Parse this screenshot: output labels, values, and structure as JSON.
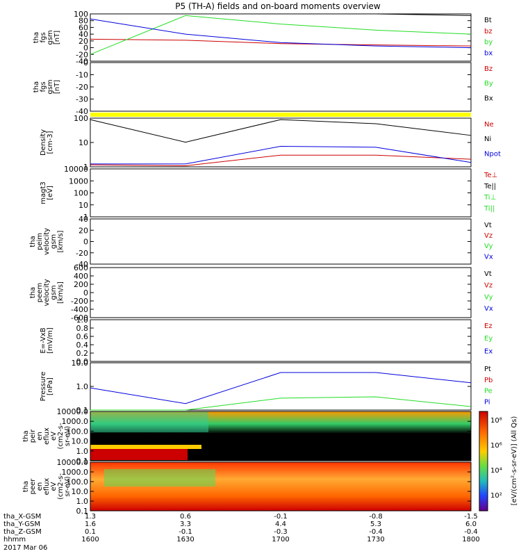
{
  "title": "P5 (TH-A) fields and on-board moments overview",
  "colors": {
    "black": "#000000",
    "red": "#cc0000",
    "green": "#22dd22",
    "blue": "#0000dd",
    "yellow": "#ffff00"
  },
  "panels": [
    {
      "ylabel": [
        "tha",
        "fgs",
        "gsm",
        "[nT]"
      ],
      "ticks": [
        "100",
        "80",
        "60",
        "40",
        "20",
        "0",
        "-20",
        "-40"
      ],
      "ylim": [
        -40,
        100
      ],
      "legend": [
        {
          "text": "Bt",
          "color": "black"
        },
        {
          "text": "bz",
          "color": "red"
        },
        {
          "text": "by",
          "color": "green"
        },
        {
          "text": "bx",
          "color": "blue"
        }
      ]
    },
    {
      "ylabel": [
        "tha",
        "fgs",
        "gsm",
        "[nT]"
      ],
      "ticks": [
        "0",
        "-10",
        "-20",
        "-30",
        "-40"
      ],
      "ylim": [
        -45,
        5
      ],
      "legend": [
        {
          "text": "Bz",
          "color": "red"
        },
        {
          "text": "By",
          "color": "green"
        },
        {
          "text": "Bx",
          "color": "black"
        }
      ]
    },
    {
      "ylabel": [
        "Density",
        "[cm-3]"
      ],
      "ticks": [
        "100",
        "10",
        "1"
      ],
      "ylim": [
        0.7,
        300
      ],
      "log": true,
      "legend": [
        {
          "text": "Ne",
          "color": "red"
        },
        {
          "text": "Ni",
          "color": "black"
        },
        {
          "text": "Npot",
          "color": "blue"
        }
      ]
    },
    {
      "ylabel": [
        "magt3",
        "[eV]"
      ],
      "ticks": [
        "10000",
        "1000",
        "100",
        "10",
        "1"
      ],
      "ylim": [
        1,
        10000
      ],
      "log": true,
      "legend": [
        {
          "text": "Te⊥",
          "color": "red"
        },
        {
          "text": "Te||",
          "color": "black"
        },
        {
          "text": "Ti⊥",
          "color": "green"
        },
        {
          "text": "Ti||",
          "color": "green"
        }
      ]
    },
    {
      "ylabel": [
        "tha",
        "peim",
        "velocity",
        "gsm",
        "[km/s]"
      ],
      "ticks": [
        "40",
        "20",
        "0",
        "-20",
        "-40"
      ],
      "ylim": [
        -40,
        40
      ],
      "legend": [
        {
          "text": "Vt",
          "color": "black"
        },
        {
          "text": "Vz",
          "color": "red"
        },
        {
          "text": "Vy",
          "color": "green"
        },
        {
          "text": "Vx",
          "color": "blue"
        }
      ]
    },
    {
      "ylabel": [
        "tha",
        "peem",
        "velocity",
        "gsm",
        "[km/s]"
      ],
      "ticks": [
        "600",
        "400",
        "200",
        "0",
        "-200",
        "-400",
        "-600"
      ],
      "ylim": [
        -600,
        600
      ],
      "legend": [
        {
          "text": "Vt",
          "color": "black"
        },
        {
          "text": "Vz",
          "color": "red"
        },
        {
          "text": "Vy",
          "color": "green"
        },
        {
          "text": "Vx",
          "color": "blue"
        }
      ]
    },
    {
      "ylabel": [
        "E=-VxB",
        "[mV/m]"
      ],
      "ticks": [
        "1.0",
        "0.8",
        "0.6",
        "0.4",
        "0.2",
        "0.0"
      ],
      "ylim": [
        0,
        1
      ],
      "legend": [
        {
          "text": "Ez",
          "color": "red"
        },
        {
          "text": "Ey",
          "color": "green"
        },
        {
          "text": "Ex",
          "color": "blue"
        }
      ]
    },
    {
      "ylabel": [
        "Pressure",
        "[nPa]"
      ],
      "ticks": [
        "10.0",
        "1.0",
        "0.1"
      ],
      "ylim": [
        0.05,
        30
      ],
      "log": true,
      "legend": [
        {
          "text": "Pt",
          "color": "black"
        },
        {
          "text": "Pb",
          "color": "red"
        },
        {
          "text": "Pe",
          "color": "green"
        },
        {
          "text": "Pi",
          "color": "blue"
        }
      ]
    },
    {
      "ylabel": [
        "tha",
        "peir",
        "en",
        "eflux",
        "eV",
        "(cm2-s-",
        "sr-eV)"
      ],
      "ticks": [
        "10000.0",
        "1000.0",
        "100.0",
        "10.0",
        "1.0",
        "0.1"
      ]
    },
    {
      "ylabel": [
        "tha",
        "peer",
        "en",
        "eflux",
        "eV",
        "(cm2-s-",
        "sr-eV)"
      ],
      "ticks": [
        "10000.0",
        "1000.0",
        "100.0",
        "10.0",
        "1.0",
        "0.1"
      ]
    }
  ],
  "colorbar": {
    "ticks": [
      "10⁸",
      "10⁶",
      "10⁴",
      "10²"
    ],
    "label": "[eV/(cm²-s-sr-eV)] (All Qs)"
  },
  "footer": {
    "rows": [
      {
        "name": "tha_X-GSM",
        "values": [
          "1.3",
          "0.6",
          "-0.1",
          "-0.8",
          "-1.5"
        ]
      },
      {
        "name": "tha_Y-GSM",
        "values": [
          "1.6",
          "3.3",
          "4.4",
          "5.3",
          "6.0"
        ]
      },
      {
        "name": "tha_Z-GSM",
        "values": [
          "0.1",
          "-0.1",
          "-0.3",
          "-0.4",
          "-0.4"
        ]
      },
      {
        "name": "hhmm",
        "values": [
          "1600",
          "1630",
          "1700",
          "1730",
          "1800"
        ]
      }
    ],
    "date": "2017 Mar 06"
  },
  "chart_data": {
    "type": "line",
    "title": "P5 (TH-A) fields and on-board moments overview",
    "x": [
      "1600",
      "1630",
      "1700",
      "1730",
      "1800"
    ],
    "series": [
      {
        "name": "Bt",
        "values": [
          110,
          115,
          110,
          100,
          95
        ]
      },
      {
        "name": "bz",
        "values": [
          25,
          22,
          12,
          8,
          5
        ]
      },
      {
        "name": "by",
        "values": [
          -20,
          95,
          70,
          52,
          40
        ]
      },
      {
        "name": "bx",
        "values": [
          85,
          40,
          15,
          5,
          0
        ]
      },
      {
        "name": "Ne",
        "values": [
          0.9,
          0.8,
          3,
          3,
          1.8
        ]
      },
      {
        "name": "Ni",
        "values": [
          250,
          15,
          250,
          150,
          35
        ]
      },
      {
        "name": "Npot",
        "values": [
          1,
          1,
          9,
          8,
          1.2
        ]
      },
      {
        "name": "Pi",
        "values": [
          1.0,
          0.12,
          8,
          8,
          2
        ]
      },
      {
        "name": "Pe",
        "values": [
          0.04,
          0.03,
          0.25,
          0.3,
          0.08
        ]
      }
    ]
  }
}
